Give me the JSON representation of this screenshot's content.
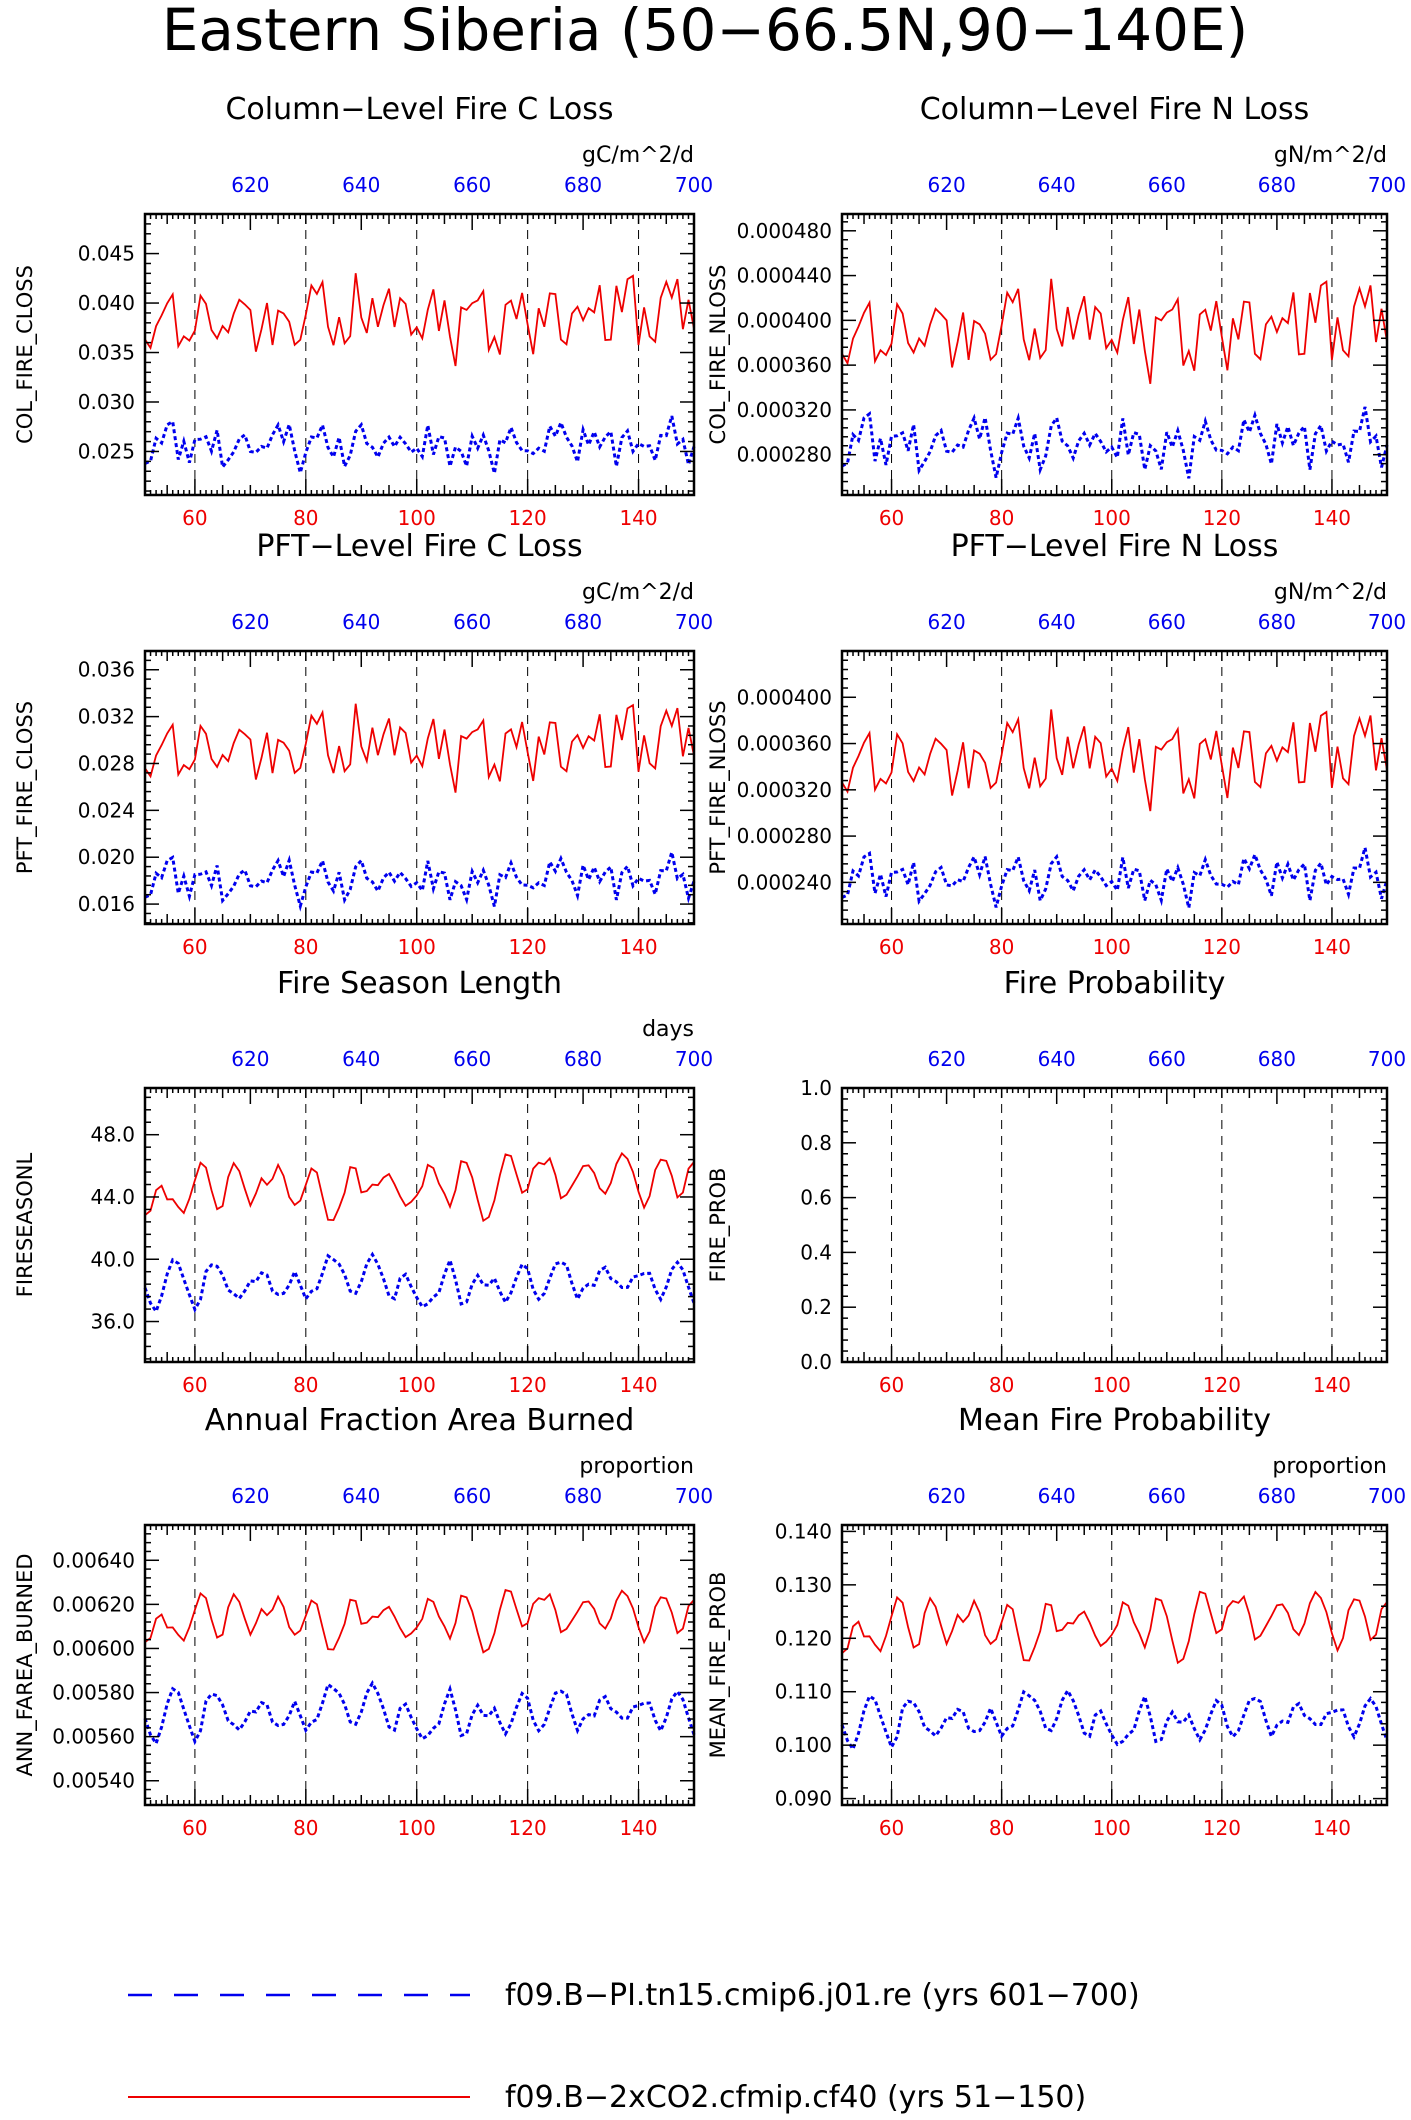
{
  "page_title": "Eastern Siberia (50−66.5N,90−140E)",
  "colors": {
    "case": "#ee0000",
    "control": "#0000ee",
    "axis": "#000000"
  },
  "legend": [
    {
      "label": "f09.B−PI.tn15.cmip6.j01.re (yrs 601−700)",
      "color": "#0000ee",
      "style": "dashed"
    },
    {
      "label": "f09.B−2xCO2.cfmip.cf40 (yrs 51−150)",
      "color": "#ee0000",
      "style": "solid"
    }
  ],
  "chart_data": [
    {
      "type": "line",
      "title": "Column−Level Fire C Loss",
      "units": "gC/m^2/d",
      "ylabel": "COL_FIRE_CLOSS",
      "xlim_bottom": [
        51,
        150
      ],
      "xlim_top": [
        601,
        700
      ],
      "xticks_bottom": [
        "60",
        "80",
        "100",
        "120",
        "140"
      ],
      "xticks_top": [
        "620",
        "640",
        "660",
        "680",
        "700"
      ],
      "ylim": [
        0.0206,
        0.049
      ],
      "yticks": [
        "0.025",
        "0.030",
        "0.035",
        "0.040",
        "0.045"
      ],
      "ytick_values": [
        0.025,
        0.03,
        0.035,
        0.04,
        0.045
      ],
      "series_gen": [
        {
          "name": "case",
          "base": 0.0383,
          "amp": 0.0032,
          "slope": 1e-05,
          "seed": 11
        },
        {
          "name": "control",
          "base": 0.0258,
          "amp": 0.002,
          "slope": 0.0,
          "seed": 23
        }
      ]
    },
    {
      "type": "line",
      "title": "Column−Level Fire N Loss",
      "units": "gN/m^2/d",
      "ylabel": "COL_FIRE_NLOSS",
      "xlim_bottom": [
        51,
        150
      ],
      "xlim_top": [
        601,
        700
      ],
      "xticks_bottom": [
        "60",
        "80",
        "100",
        "120",
        "140"
      ],
      "xticks_top": [
        "620",
        "640",
        "660",
        "680",
        "700"
      ],
      "ylim": [
        0.000244,
        0.000495
      ],
      "yticks": [
        "0.000280",
        "0.000320",
        "0.000360",
        "0.000400",
        "0.000440",
        "0.000480"
      ],
      "ytick_values": [
        0.00028,
        0.00032,
        0.00036,
        0.0004,
        0.00044,
        0.00048
      ],
      "series_gen": [
        {
          "name": "case",
          "base": 0.00039,
          "amp": 3.2e-05,
          "slope": 1e-07,
          "seed": 11
        },
        {
          "name": "control",
          "base": 0.000292,
          "amp": 2.2e-05,
          "slope": 0.0,
          "seed": 23
        }
      ]
    },
    {
      "type": "line",
      "title": "PFT−Level Fire C Loss",
      "units": "gC/m^2/d",
      "ylabel": "PFT_FIRE_CLOSS",
      "xlim_bottom": [
        51,
        150
      ],
      "xlim_top": [
        601,
        700
      ],
      "xticks_bottom": [
        "60",
        "80",
        "100",
        "120",
        "140"
      ],
      "xticks_top": [
        "620",
        "640",
        "660",
        "680",
        "700"
      ],
      "ylim": [
        0.0143,
        0.0376
      ],
      "yticks": [
        "0.016",
        "0.020",
        "0.024",
        "0.028",
        "0.032",
        "0.036"
      ],
      "ytick_values": [
        0.016,
        0.02,
        0.024,
        0.028,
        0.032,
        0.036
      ],
      "series_gen": [
        {
          "name": "case",
          "base": 0.0292,
          "amp": 0.0026,
          "slope": 1e-05,
          "seed": 11
        },
        {
          "name": "control",
          "base": 0.0182,
          "amp": 0.0016,
          "slope": 0.0,
          "seed": 23
        }
      ]
    },
    {
      "type": "line",
      "title": "PFT−Level Fire N Loss",
      "units": "gN/m^2/d",
      "ylabel": "PFT_FIRE_NLOSS",
      "xlim_bottom": [
        51,
        150
      ],
      "xlim_top": [
        601,
        700
      ],
      "xticks_bottom": [
        "60",
        "80",
        "100",
        "120",
        "140"
      ],
      "xticks_top": [
        "620",
        "640",
        "660",
        "680",
        "700"
      ],
      "ylim": [
        0.000204,
        0.00044
      ],
      "yticks": [
        "0.000240",
        "0.000280",
        "0.000320",
        "0.000360",
        "0.000400"
      ],
      "ytick_values": [
        0.00024,
        0.00028,
        0.00032,
        0.00036,
        0.0004
      ],
      "series_gen": [
        {
          "name": "case",
          "base": 0.000345,
          "amp": 3e-05,
          "slope": 1e-07,
          "seed": 11
        },
        {
          "name": "control",
          "base": 0.000245,
          "amp": 1.8e-05,
          "slope": 0.0,
          "seed": 23
        }
      ]
    },
    {
      "type": "line",
      "title": "Fire Season Length",
      "units": "days",
      "ylabel": "FIRESEASONL",
      "xlim_bottom": [
        51,
        150
      ],
      "xlim_top": [
        601,
        700
      ],
      "xticks_bottom": [
        "60",
        "80",
        "100",
        "120",
        "140"
      ],
      "xticks_top": [
        "620",
        "640",
        "660",
        "680",
        "700"
      ],
      "ylim": [
        33.4,
        51.0
      ],
      "yticks": [
        "36.0",
        "40.0",
        "44.0",
        "48.0"
      ],
      "ytick_values": [
        36.0,
        40.0,
        44.0,
        48.0
      ],
      "series_gen": [
        {
          "name": "case",
          "base": 44.2,
          "amp": 2.4,
          "slope": 0.01,
          "seed": 31,
          "smooth": true
        },
        {
          "name": "control",
          "base": 38.4,
          "amp": 2.0,
          "slope": 0.0,
          "seed": 47,
          "smooth": true
        }
      ]
    },
    {
      "type": "line",
      "title": "Fire Probability",
      "units": "",
      "ylabel": "FIRE_PROB",
      "xlim_bottom": [
        51,
        150
      ],
      "xlim_top": [
        601,
        700
      ],
      "xticks_bottom": [
        "60",
        "80",
        "100",
        "120",
        "140"
      ],
      "xticks_top": [
        "620",
        "640",
        "660",
        "680",
        "700"
      ],
      "ylim": [
        0.0,
        1.0
      ],
      "yticks": [
        "0.0",
        "0.2",
        "0.4",
        "0.6",
        "0.8",
        "1.0"
      ],
      "ytick_values": [
        0.0,
        0.2,
        0.4,
        0.6,
        0.8,
        1.0
      ],
      "series_gen": []
    },
    {
      "type": "line",
      "title": "Annual Fraction Area Burned",
      "units": "proportion",
      "ylabel": "ANN_FAREA_BURNED",
      "xlim_bottom": [
        51,
        150
      ],
      "xlim_top": [
        601,
        700
      ],
      "xticks_bottom": [
        "60",
        "80",
        "100",
        "120",
        "140"
      ],
      "xticks_top": [
        "620",
        "640",
        "660",
        "680",
        "700"
      ],
      "ylim": [
        0.00529,
        0.00656
      ],
      "yticks": [
        "0.00540",
        "0.00560",
        "0.00580",
        "0.00600",
        "0.00620",
        "0.00640"
      ],
      "ytick_values": [
        0.0054,
        0.0056,
        0.0058,
        0.006,
        0.0062,
        0.0064
      ],
      "series_gen": [
        {
          "name": "case",
          "base": 0.00612,
          "amp": 0.00016,
          "slope": 3e-07,
          "seed": 31,
          "smooth": true
        },
        {
          "name": "control",
          "base": 0.0057,
          "amp": 0.00015,
          "slope": 0.0,
          "seed": 47,
          "smooth": true
        }
      ]
    },
    {
      "type": "line",
      "title": "Mean Fire Probability",
      "units": "proportion",
      "ylabel": "MEAN_FIRE_PROB",
      "xlim_bottom": [
        51,
        150
      ],
      "xlim_top": [
        601,
        700
      ],
      "xticks_bottom": [
        "60",
        "80",
        "100",
        "120",
        "140"
      ],
      "xticks_top": [
        "620",
        "640",
        "660",
        "680",
        "700"
      ],
      "ylim": [
        0.0888,
        0.1412
      ],
      "yticks": [
        "0.090",
        "0.100",
        "0.110",
        "0.120",
        "0.130",
        "0.140"
      ],
      "ytick_values": [
        0.09,
        0.1,
        0.11,
        0.12,
        0.13,
        0.14
      ],
      "series_gen": [
        {
          "name": "case",
          "base": 0.1215,
          "amp": 0.0075,
          "slope": 2e-05,
          "seed": 31,
          "smooth": true
        },
        {
          "name": "control",
          "base": 0.1045,
          "amp": 0.006,
          "slope": 0.0,
          "seed": 47,
          "smooth": true
        }
      ]
    }
  ]
}
